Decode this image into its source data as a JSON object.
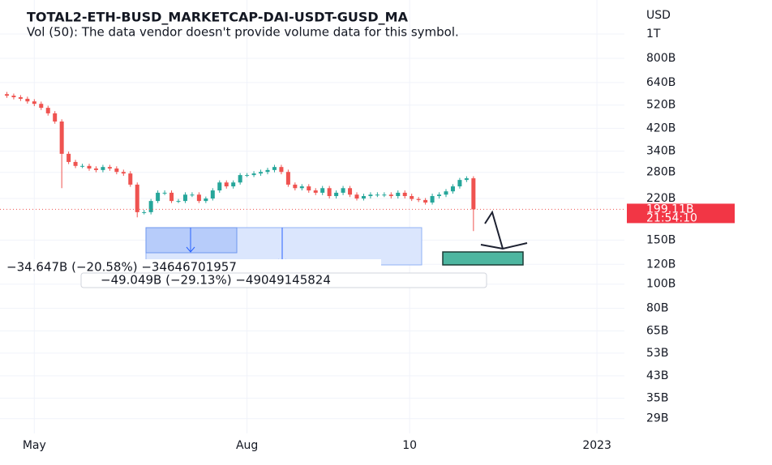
{
  "chart_data": {
    "type": "candlestick",
    "title": "TOTAL2-ETH-BUSD_MARKETCAP-DAI-USDT-GUSD_MA",
    "subtitle": "Vol (50): The data vendor doesn't provide volume data for this symbol.",
    "currency": "USD",
    "open": [
      575,
      567,
      559,
      551,
      538,
      526,
      507,
      482,
      447,
      332,
      308,
      297,
      297,
      290,
      286,
      294,
      290,
      281,
      277,
      250,
      194,
      194,
      215,
      232,
      232,
      215,
      215,
      228,
      228,
      215,
      220,
      237,
      255,
      246,
      255,
      273,
      273,
      277,
      281,
      286,
      294,
      281,
      250,
      242,
      246,
      237,
      232,
      242,
      225,
      232,
      242,
      228,
      220,
      225,
      228,
      228,
      228,
      225,
      232,
      225,
      219,
      217,
      212,
      225,
      228,
      235,
      246,
      261,
      265
    ],
    "high": [
      587,
      578,
      570,
      562,
      549,
      537,
      517,
      492,
      456,
      339,
      314,
      303,
      303,
      296,
      300,
      300,
      296,
      287,
      283,
      255,
      198,
      219,
      237,
      237,
      237,
      219,
      233,
      233,
      233,
      224,
      242,
      260,
      260,
      260,
      278,
      278,
      283,
      287,
      292,
      300,
      300,
      287,
      255,
      251,
      251,
      242,
      247,
      247,
      237,
      247,
      247,
      233,
      230,
      233,
      233,
      233,
      233,
      237,
      237,
      230,
      223,
      221,
      230,
      233,
      240,
      251,
      266,
      270,
      270
    ],
    "low": [
      556,
      548,
      540,
      527,
      515,
      497,
      472,
      438,
      242,
      302,
      291,
      291,
      284,
      280,
      280,
      284,
      275,
      271,
      245,
      185,
      190,
      190,
      211,
      227,
      211,
      211,
      211,
      223,
      211,
      211,
      216,
      232,
      241,
      241,
      250,
      268,
      268,
      271,
      275,
      280,
      275,
      245,
      237,
      237,
      232,
      227,
      227,
      220,
      220,
      227,
      223,
      216,
      216,
      220,
      223,
      223,
      220,
      220,
      220,
      215,
      213,
      208,
      208,
      220,
      223,
      230,
      241,
      256,
      163
    ],
    "close": [
      567,
      559,
      551,
      538,
      526,
      507,
      482,
      447,
      332,
      308,
      297,
      297,
      290,
      286,
      294,
      290,
      281,
      277,
      250,
      194,
      194,
      215,
      232,
      232,
      215,
      215,
      228,
      228,
      215,
      220,
      237,
      255,
      246,
      255,
      273,
      273,
      277,
      281,
      286,
      294,
      281,
      250,
      242,
      246,
      237,
      232,
      242,
      225,
      232,
      242,
      228,
      220,
      225,
      228,
      228,
      228,
      225,
      232,
      225,
      219,
      217,
      212,
      225,
      228,
      235,
      246,
      261,
      265,
      199.11
    ],
    "up_color": "#26a69a",
    "down_color": "#ef5350",
    "log_scale": true,
    "grid": true,
    "ylim": [
      25.3,
      1270
    ],
    "yticks": [
      {
        "value": 1000,
        "label": "1T"
      },
      {
        "value": 800,
        "label": "800B"
      },
      {
        "value": 640,
        "label": "640B"
      },
      {
        "value": 520,
        "label": "520B"
      },
      {
        "value": 420,
        "label": "420B"
      },
      {
        "value": 340,
        "label": "340B"
      },
      {
        "value": 280,
        "label": "280B"
      },
      {
        "value": 220,
        "label": "220B"
      },
      {
        "value": 150,
        "label": "150B"
      },
      {
        "value": 120,
        "label": "120B"
      },
      {
        "value": 100,
        "label": "100B"
      },
      {
        "value": 80,
        "label": "80B"
      },
      {
        "value": 65,
        "label": "65B"
      },
      {
        "value": 53,
        "label": "53B"
      },
      {
        "value": 43,
        "label": "43B"
      },
      {
        "value": 35,
        "label": "35B"
      },
      {
        "value": 29,
        "label": "29B"
      }
    ],
    "xlim": [
      -1,
      90
    ],
    "xticks": [
      {
        "value": 4,
        "label": "May"
      },
      {
        "value": 35,
        "label": "Aug"
      },
      {
        "value": 58.7,
        "label": "10"
      },
      {
        "value": 86,
        "label": "2023"
      }
    ],
    "last_price": {
      "value": 199.11,
      "label": "199.11B"
    },
    "countdown": "21:54:10",
    "annotations": [
      "−34.647B (−20.58%) −34646701957",
      "−49.049B (−29.13%) −49049145824"
    ]
  }
}
